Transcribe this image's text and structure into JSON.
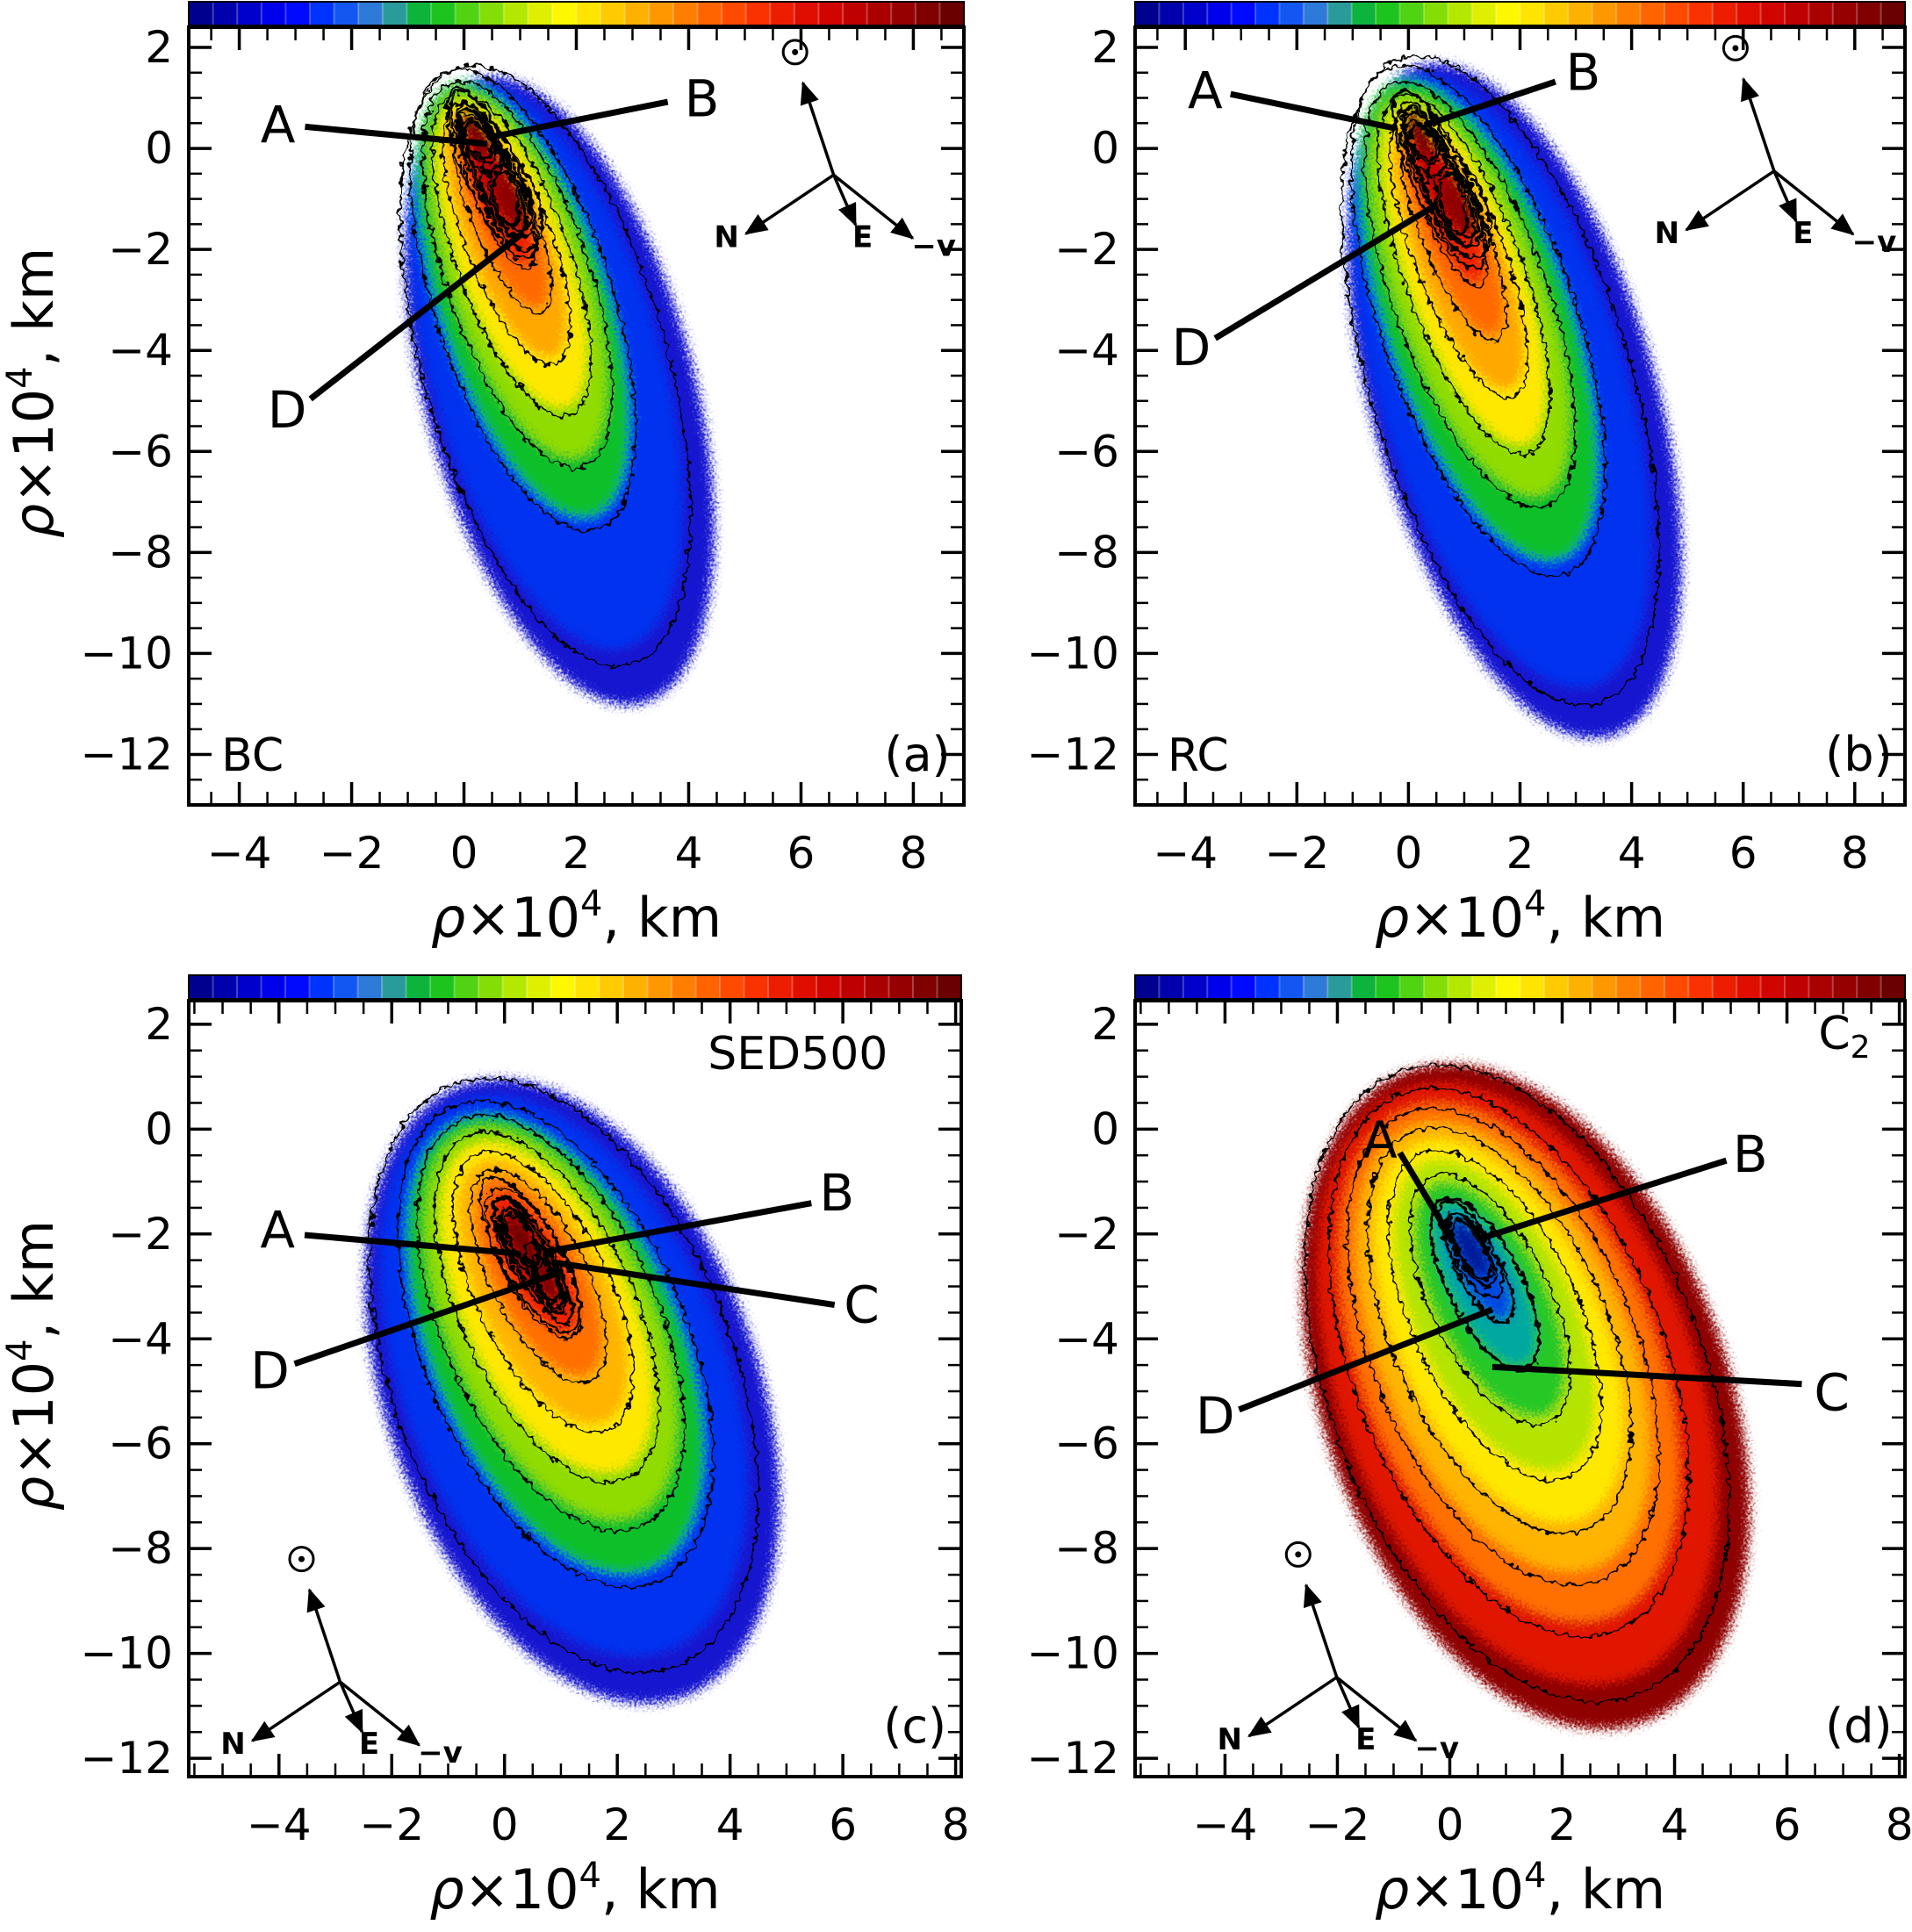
{
  "figure": {
    "background": "#ffffff",
    "axis_label_parts": {
      "rho": "ρ",
      "mid": "×10",
      "sup": "4",
      "unit": ", km"
    },
    "compass_labels": {
      "north": "N",
      "east": "E",
      "neg_velocity": "−v",
      "sun_symbol": "⊙"
    },
    "colorbar_colors": [
      "#00008f",
      "#0000ad",
      "#0000cc",
      "#0000ea",
      "#000aff",
      "#0033ff",
      "#1357f2",
      "#2e7ad8",
      "#2a9b9b",
      "#0cb43c",
      "#1ec41e",
      "#50d312",
      "#84de06",
      "#b4e800",
      "#def000",
      "#fdf800",
      "#ffe400",
      "#ffcb00",
      "#ffb100",
      "#ff9800",
      "#ff7e00",
      "#ff6400",
      "#ff4a00",
      "#fa3100",
      "#ed1e00",
      "#df0e00",
      "#d00500",
      "#bf0000",
      "#ab0000",
      "#960000",
      "#800000",
      "#6a0000"
    ]
  },
  "chart_data": {
    "type": "heatmap",
    "layout": "2x2-panel-grid",
    "colormap": "discrete rainbow (dark blue → blue → green → yellow → orange → red → dark red)",
    "x_axis": {
      "title": "ρ×10⁴, km",
      "tick_values": [
        -4,
        -2,
        0,
        2,
        4,
        6,
        8
      ],
      "tick_labels": [
        "−4",
        "−2",
        "0",
        "2",
        "4",
        "6",
        "8"
      ],
      "minor_step": 0.5
    },
    "y_axis": {
      "title": "ρ×10⁴, km",
      "tick_values": [
        2,
        0,
        -2,
        -4,
        -6,
        -8,
        -10,
        -12
      ],
      "tick_labels": [
        "2",
        "0",
        "−2",
        "−4",
        "−6",
        "−8",
        "−10",
        "−12"
      ],
      "minor_step": 0.5
    },
    "panels": [
      {
        "id": "a",
        "corner_label": "(a)",
        "dataset_label": {
          "text": "BC",
          "sub": "",
          "fx": 0.042,
          "fy": 0.956,
          "anchor": "start"
        },
        "x_range": [
          -4.9,
          8.9
        ],
        "y_range": [
          2.4,
          -13.0
        ],
        "y_title": true,
        "compass": {
          "fx": 0.832,
          "fy": 0.19,
          "corner": "top-right"
        },
        "annotations": [
          {
            "text": "A",
            "lx": 0.115,
            "ly": 0.126,
            "line": [
              0.15,
              0.128,
              0.385,
              0.15
            ]
          },
          {
            "text": "B",
            "lx": 0.662,
            "ly": 0.092,
            "line": [
              0.618,
              0.096,
              0.396,
              0.14
            ]
          },
          {
            "text": "D",
            "lx": 0.127,
            "ly": 0.492,
            "line": [
              0.157,
              0.478,
              0.432,
              0.264
            ]
          }
        ],
        "layers": [
          {
            "c": "#1818d0",
            "x": 1.7,
            "y": -4.8,
            "rx": 2.4,
            "ry": 6.4,
            "rot": -15
          },
          {
            "c": "#0033f0",
            "x": 1.45,
            "y": -4.3,
            "rx": 2.05,
            "ry": 5.8,
            "rot": -16
          },
          {
            "c": "#10c02a",
            "x": 1.05,
            "y": -3.0,
            "rx": 1.5,
            "ry": 4.5,
            "rot": -18
          },
          {
            "c": "#90dc00",
            "x": 0.95,
            "y": -2.5,
            "rx": 1.2,
            "ry": 3.8,
            "rot": -19
          },
          {
            "c": "#ffe800",
            "x": 0.85,
            "y": -2.1,
            "rx": 0.95,
            "ry": 3.2,
            "rot": -20
          },
          {
            "c": "#ffa800",
            "x": 0.75,
            "y": -1.7,
            "rx": 0.72,
            "ry": 2.6,
            "rot": -21
          },
          {
            "c": "#ff6a00",
            "x": 0.68,
            "y": -1.3,
            "rx": 0.52,
            "ry": 2.0,
            "rot": -22
          },
          {
            "c": "#ee2200",
            "x": 0.6,
            "y": -0.9,
            "rx": 0.38,
            "ry": 1.5,
            "rot": -23
          },
          {
            "c": "#c40000",
            "x": 0.5,
            "y": -0.5,
            "rx": 0.27,
            "ry": 1.05,
            "rot": -24
          },
          {
            "c": "#7a0000",
            "x": 0.22,
            "y": 0.3,
            "rx": 0.2,
            "ry": 0.5,
            "rot": -25
          },
          {
            "c": "#8f0000",
            "x": 0.85,
            "y": -1.05,
            "rx": 0.26,
            "ry": 0.58,
            "rot": -22
          }
        ]
      },
      {
        "id": "b",
        "corner_label": "(b)",
        "dataset_label": {
          "text": "RC",
          "sub": "",
          "fx": 0.042,
          "fy": 0.956,
          "anchor": "start"
        },
        "x_range": [
          -4.9,
          8.9
        ],
        "y_range": [
          2.4,
          -13.0
        ],
        "y_title": false,
        "compass": {
          "fx": 0.83,
          "fy": 0.185,
          "corner": "top-right"
        },
        "annotations": [
          {
            "text": "A",
            "lx": 0.091,
            "ly": 0.082,
            "line": [
              0.124,
              0.086,
              0.338,
              0.13
            ]
          },
          {
            "text": "B",
            "lx": 0.582,
            "ly": 0.058,
            "line": [
              0.546,
              0.07,
              0.376,
              0.126
            ]
          },
          {
            "text": "D",
            "lx": 0.073,
            "ly": 0.412,
            "line": [
              0.104,
              0.4,
              0.392,
              0.228
            ]
          }
        ],
        "layers": [
          {
            "c": "#1818d0",
            "x": 1.9,
            "y": -5.0,
            "rx": 2.55,
            "ry": 6.9,
            "rot": -16
          },
          {
            "c": "#0033f0",
            "x": 1.65,
            "y": -4.6,
            "rx": 2.2,
            "ry": 6.3,
            "rot": -17
          },
          {
            "c": "#10c02a",
            "x": 1.25,
            "y": -3.4,
            "rx": 1.65,
            "ry": 5.0,
            "rot": -19
          },
          {
            "c": "#90dc00",
            "x": 1.1,
            "y": -2.9,
            "rx": 1.3,
            "ry": 4.2,
            "rot": -20
          },
          {
            "c": "#ffe800",
            "x": 1.0,
            "y": -2.5,
            "rx": 1.0,
            "ry": 3.55,
            "rot": -20
          },
          {
            "c": "#ffa800",
            "x": 0.9,
            "y": -2.1,
            "rx": 0.76,
            "ry": 2.85,
            "rot": -21
          },
          {
            "c": "#ff6a00",
            "x": 0.8,
            "y": -1.65,
            "rx": 0.55,
            "ry": 2.2,
            "rot": -22
          },
          {
            "c": "#ee2200",
            "x": 0.68,
            "y": -1.15,
            "rx": 0.4,
            "ry": 1.62,
            "rot": -23
          },
          {
            "c": "#c40000",
            "x": 0.55,
            "y": -0.6,
            "rx": 0.28,
            "ry": 1.1,
            "rot": -24
          },
          {
            "c": "#7a0000",
            "x": 0.2,
            "y": 0.3,
            "rx": 0.2,
            "ry": 0.52,
            "rot": -25
          },
          {
            "c": "#8f0000",
            "x": 0.9,
            "y": -1.15,
            "rx": 0.27,
            "ry": 0.62,
            "rot": -22
          }
        ]
      },
      {
        "id": "c",
        "corner_label": "(c)",
        "dataset_label": {
          "text": "SED500",
          "sub": "",
          "fx": 0.905,
          "fy": 0.088,
          "anchor": "end"
        },
        "x_range": [
          -5.6,
          8.1
        ],
        "y_range": [
          2.45,
          -12.35
        ],
        "y_title": true,
        "compass": {
          "fx": 0.196,
          "fy": 0.878,
          "corner": "bottom-left"
        },
        "annotations": [
          {
            "text": "A",
            "lx": 0.115,
            "ly": 0.296,
            "line": [
              0.15,
              0.302,
              0.427,
              0.326
            ]
          },
          {
            "text": "B",
            "lx": 0.839,
            "ly": 0.248,
            "line": [
              0.806,
              0.261,
              0.46,
              0.324
            ]
          },
          {
            "text": "C",
            "lx": 0.871,
            "ly": 0.392,
            "line": [
              0.836,
              0.392,
              0.47,
              0.337
            ]
          },
          {
            "text": "D",
            "lx": 0.105,
            "ly": 0.477,
            "line": [
              0.137,
              0.468,
              0.484,
              0.349
            ]
          }
        ],
        "layers": [
          {
            "c": "#1818d0",
            "x": 1.2,
            "y": -5.0,
            "rx": 3.3,
            "ry": 6.2,
            "rot": -20
          },
          {
            "c": "#0033f0",
            "x": 1.05,
            "y": -4.7,
            "rx": 2.85,
            "ry": 5.6,
            "rot": -21
          },
          {
            "c": "#10c02a",
            "x": 0.9,
            "y": -4.1,
            "rx": 2.2,
            "ry": 4.65,
            "rot": -23
          },
          {
            "c": "#90dc00",
            "x": 0.82,
            "y": -3.7,
            "rx": 1.8,
            "ry": 4.0,
            "rot": -24
          },
          {
            "c": "#ffe800",
            "x": 0.75,
            "y": -3.4,
            "rx": 1.45,
            "ry": 3.4,
            "rot": -25
          },
          {
            "c": "#ffb400",
            "x": 0.68,
            "y": -3.1,
            "rx": 1.12,
            "ry": 2.75,
            "rot": -26
          },
          {
            "c": "#ff7000",
            "x": 0.6,
            "y": -2.8,
            "rx": 0.8,
            "ry": 2.1,
            "rot": -27
          },
          {
            "c": "#ee2200",
            "x": 0.52,
            "y": -2.55,
            "rx": 0.52,
            "ry": 1.5,
            "rot": -28
          },
          {
            "c": "#b80000",
            "x": 0.45,
            "y": -2.4,
            "rx": 0.3,
            "ry": 0.95,
            "rot": -29
          },
          {
            "c": "#700000",
            "x": 0.3,
            "y": -2.1,
            "rx": 0.17,
            "ry": 0.5,
            "rot": -30
          },
          {
            "c": "#780000",
            "x": 0.78,
            "y": -2.95,
            "rx": 0.15,
            "ry": 0.48,
            "rot": -25
          }
        ]
      },
      {
        "id": "d",
        "corner_label": "(d)",
        "dataset_label": {
          "text": "C",
          "sub": "2",
          "fx": 0.955,
          "fy": 0.062,
          "anchor": "end"
        },
        "x_range": [
          -5.6,
          8.1
        ],
        "y_range": [
          2.45,
          -12.35
        ],
        "y_title": false,
        "compass": {
          "fx": 0.262,
          "fy": 0.872,
          "corner": "bottom-left"
        },
        "annotations": [
          {
            "text": "A",
            "lx": 0.318,
            "ly": 0.18,
            "line": [
              0.344,
              0.196,
              0.414,
              0.312
            ]
          },
          {
            "text": "B",
            "lx": 0.799,
            "ly": 0.198,
            "line": [
              0.768,
              0.206,
              0.444,
              0.308
            ]
          },
          {
            "text": "C",
            "lx": 0.905,
            "ly": 0.505,
            "line": [
              0.866,
              0.494,
              0.464,
              0.472
            ]
          },
          {
            "text": "D",
            "lx": 0.104,
            "ly": 0.535,
            "line": [
              0.135,
              0.527,
              0.464,
              0.398
            ]
          }
        ],
        "layers": [
          {
            "c": "#8f0000",
            "x": 1.35,
            "y": -5.1,
            "rx": 3.6,
            "ry": 6.6,
            "rot": -20
          },
          {
            "c": "#e01800",
            "x": 1.2,
            "y": -4.85,
            "rx": 3.15,
            "ry": 6.0,
            "rot": -21
          },
          {
            "c": "#ff7000",
            "x": 1.05,
            "y": -4.45,
            "rx": 2.6,
            "ry": 5.2,
            "rot": -22
          },
          {
            "c": "#ffb400",
            "x": 0.95,
            "y": -4.15,
            "rx": 2.2,
            "ry": 4.55,
            "rot": -23
          },
          {
            "c": "#ffe800",
            "x": 0.88,
            "y": -3.85,
            "rx": 1.8,
            "ry": 3.9,
            "rot": -24
          },
          {
            "c": "#b4e400",
            "x": 0.8,
            "y": -3.55,
            "rx": 1.4,
            "ry": 3.2,
            "rot": -25
          },
          {
            "c": "#28c828",
            "x": 0.72,
            "y": -3.25,
            "rx": 1.0,
            "ry": 2.45,
            "rot": -26
          },
          {
            "c": "#00a8a0",
            "x": 0.62,
            "y": -2.95,
            "rx": 0.62,
            "ry": 1.7,
            "rot": -27
          },
          {
            "c": "#0048e0",
            "x": 0.52,
            "y": -2.65,
            "rx": 0.36,
            "ry": 1.1,
            "rot": -28
          },
          {
            "c": "#001a9a",
            "x": 0.38,
            "y": -2.3,
            "rx": 0.2,
            "ry": 0.6,
            "rot": -29
          }
        ]
      }
    ]
  }
}
